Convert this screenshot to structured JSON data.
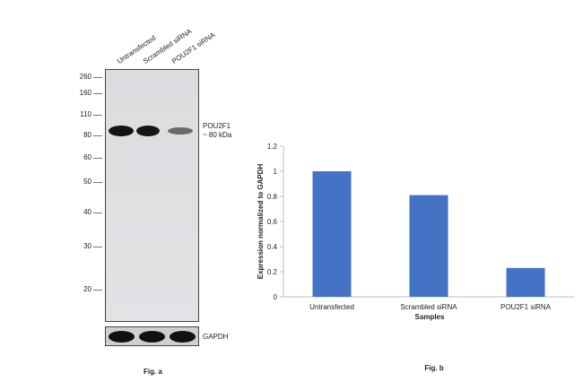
{
  "western_blot": {
    "lanes": [
      "Untransfected",
      "Scrambled siRNA",
      "POU2F1 siRNA"
    ],
    "mw_markers": [
      "260",
      "160",
      "110",
      "80",
      "60",
      "50",
      "40",
      "30",
      "20"
    ],
    "target_label": "POU2F1",
    "target_size": "~ 80 kDa",
    "loading_control": "GAPDH",
    "caption": "Fig. a"
  },
  "chart_data": {
    "type": "bar",
    "categories": [
      "Untransfected",
      "Scrambled siRNA",
      "POU2F1 siRNA"
    ],
    "values": [
      1.0,
      0.81,
      0.23
    ],
    "title": "",
    "xlabel": "Samples",
    "ylabel": "Expression normalized to GAPDH",
    "ylim": [
      0,
      1.2
    ],
    "yticks": [
      "0",
      "0.2",
      "0.4",
      "0.6",
      "0.8",
      "1",
      "1.2"
    ],
    "grid": false,
    "bar_color": "#4472C4",
    "caption": "Fig. b"
  }
}
